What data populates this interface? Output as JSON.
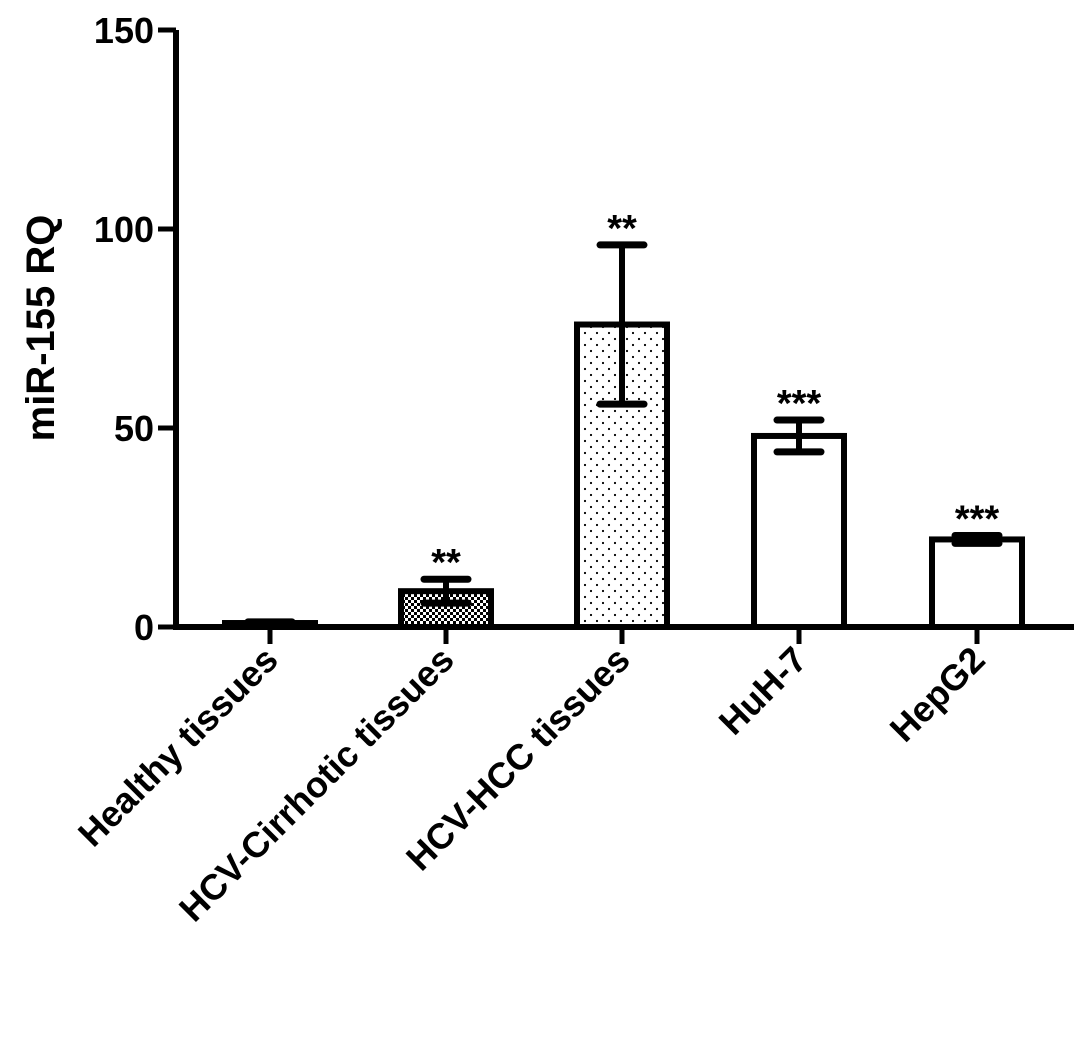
{
  "chart_data": {
    "type": "bar",
    "ylabel": "miR-155 RQ",
    "xlabel": "",
    "ylim": [
      0,
      150
    ],
    "yticks": [
      0,
      50,
      100,
      150
    ],
    "grid": false,
    "categories": [
      "Healthy tissues",
      "HCV-Cirrhotic tissues",
      "HCV-HCC tissues",
      "HuH-7",
      "HepG2"
    ],
    "values": [
      1,
      9,
      76,
      48,
      22
    ],
    "error": [
      0.3,
      3,
      20,
      4,
      1
    ],
    "significance": [
      "",
      "**",
      "**",
      "***",
      "***"
    ],
    "fill_patterns": [
      "white",
      "checker",
      "dots",
      "white",
      "white"
    ]
  }
}
